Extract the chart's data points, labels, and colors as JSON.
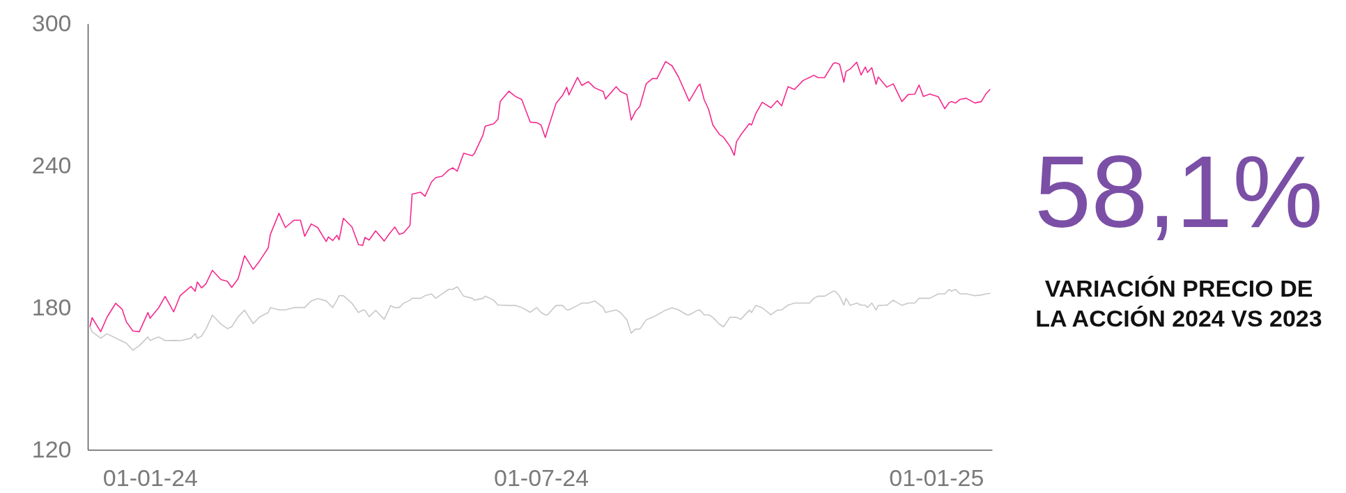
{
  "chart_data": {
    "type": "line",
    "x": [
      "2023-12-04",
      "2023-12-05",
      "2023-12-09",
      "2023-12-12",
      "2023-12-16",
      "2023-12-19",
      "2023-12-21",
      "2023-12-24",
      "2023-12-27",
      "2023-12-31",
      "2024-01-01",
      "2024-01-05",
      "2024-01-08",
      "2024-01-12",
      "2024-01-15",
      "2024-01-20",
      "2024-01-22",
      "2024-01-23",
      "2024-01-25",
      "2024-01-27",
      "2024-01-30",
      "2024-02-03",
      "2024-02-06",
      "2024-02-08",
      "2024-02-11",
      "2024-02-14",
      "2024-02-18",
      "2024-02-21",
      "2024-02-25",
      "2024-02-26",
      "2024-03-01",
      "2024-03-04",
      "2024-03-08",
      "2024-03-11",
      "2024-03-13",
      "2024-03-16",
      "2024-03-19",
      "2024-03-23",
      "2024-03-24",
      "2024-03-26",
      "2024-03-28",
      "2024-03-29",
      "2024-03-31",
      "2024-04-04",
      "2024-04-07",
      "2024-04-09",
      "2024-04-10",
      "2024-04-12",
      "2024-04-15",
      "2024-04-19",
      "2024-04-22",
      "2024-04-24",
      "2024-04-26",
      "2024-04-28",
      "2024-05-01",
      "2024-05-02",
      "2024-05-06",
      "2024-05-08",
      "2024-05-11",
      "2024-05-13",
      "2024-05-16",
      "2024-05-19",
      "2024-05-21",
      "2024-05-23",
      "2024-05-26",
      "2024-05-30",
      "2024-05-31",
      "2024-06-04",
      "2024-06-05",
      "2024-06-09",
      "2024-06-11",
      "2024-06-12",
      "2024-06-16",
      "2024-06-19",
      "2024-06-22",
      "2024-06-26",
      "2024-06-29",
      "2024-07-01",
      "2024-07-03",
      "2024-07-04",
      "2024-07-08",
      "2024-07-11",
      "2024-07-13",
      "2024-07-14",
      "2024-07-18",
      "2024-07-20",
      "2024-07-23",
      "2024-07-26",
      "2024-07-30",
      "2024-07-31",
      "2024-08-05",
      "2024-08-07",
      "2024-08-10",
      "2024-08-12",
      "2024-08-14",
      "2024-08-16",
      "2024-08-19",
      "2024-08-22",
      "2024-08-24",
      "2024-08-28",
      "2024-08-31",
      "2024-09-03",
      "2024-09-07",
      "2024-09-08",
      "2024-09-12",
      "2024-09-13",
      "2024-09-15",
      "2024-09-17",
      "2024-09-19",
      "2024-09-22",
      "2024-09-24",
      "2024-09-27",
      "2024-09-29",
      "2024-09-30",
      "2024-10-02",
      "2024-10-06",
      "2024-10-07",
      "2024-10-09",
      "2024-10-12",
      "2024-10-16",
      "2024-10-19",
      "2024-10-21",
      "2024-10-24",
      "2024-10-27",
      "2024-10-31",
      "2024-11-03",
      "2024-11-05",
      "2024-11-07",
      "2024-11-10",
      "2024-11-12",
      "2024-11-14",
      "2024-11-15",
      "2024-11-17",
      "2024-11-19",
      "2024-11-20",
      "2024-11-22",
      "2024-11-25",
      "2024-11-27",
      "2024-11-29",
      "2024-11-30",
      "2024-12-02",
      "2024-12-04",
      "2024-12-05",
      "2024-12-09",
      "2024-12-12",
      "2024-12-16",
      "2024-12-19",
      "2024-12-22",
      "2024-12-24",
      "2024-12-26",
      "2024-12-29",
      "2025-01-02",
      "2025-01-05",
      "2025-01-07",
      "2025-01-08",
      "2025-01-10",
      "2025-01-12",
      "2025-01-15",
      "2025-01-19",
      "2025-01-22",
      "2025-01-24",
      "2025-01-26"
    ],
    "series": [
      {
        "color": "#f5288d",
        "values": [
          172.0,
          175.8,
          169.9,
          176.1,
          181.9,
          179.4,
          174.0,
          170.2,
          169.9,
          178.0,
          175.6,
          180.0,
          184.8,
          178.3,
          185.1,
          189.0,
          187.0,
          190.9,
          188.4,
          190.1,
          195.8,
          191.9,
          191.2,
          188.6,
          192.3,
          202.0,
          196.2,
          199.8,
          205.3,
          211.0,
          219.9,
          213.9,
          217.0,
          217.0,
          210.2,
          215.4,
          213.9,
          208.0,
          209.9,
          208.4,
          210.6,
          208.7,
          217.8,
          214.1,
          206.7,
          206.3,
          209.7,
          208.6,
          212.5,
          208.2,
          212.0,
          214.1,
          211.0,
          211.6,
          214.8,
          228.0,
          228.8,
          227.1,
          233.1,
          235.0,
          235.6,
          238.2,
          239.1,
          237.7,
          245.3,
          244.2,
          245.2,
          253.0,
          256.7,
          257.7,
          259.7,
          267.1,
          271.5,
          269.3,
          268.0,
          258.4,
          258.2,
          257.2,
          251.9,
          255.0,
          266.3,
          269.7,
          273.1,
          269.9,
          277.3,
          273.9,
          275.5,
          272.9,
          271.3,
          268.2,
          273.4,
          271.3,
          270.1,
          259.3,
          263.0,
          265.0,
          274.7,
          276.9,
          276.8,
          284.0,
          282.2,
          277.5,
          269.3,
          267.3,
          273.5,
          274.5,
          267.8,
          263.9,
          257.2,
          253.3,
          252.0,
          248.2,
          244.4,
          250.1,
          253.0,
          257.8,
          257.2,
          262.0,
          266.8,
          264.5,
          267.5,
          265.3,
          273.4,
          272.2,
          276.0,
          277.3,
          278.2,
          277.2,
          277.2,
          280.2,
          283.1,
          283.5,
          282.9,
          275.3,
          279.8,
          280.9,
          283.7,
          278.3,
          281.7,
          279.4,
          281.4,
          274.4,
          277.5,
          273.2,
          274.6,
          267.1,
          270.1,
          270.2,
          274.1,
          269.3,
          270.3,
          269.1,
          264.1,
          266.7,
          267.1,
          266.5,
          268.0,
          268.5,
          266.5,
          267.1,
          270.2,
          272.2
        ]
      },
      {
        "color": "#c8c8c8",
        "values": [
          172.0,
          169.9,
          167.2,
          169.0,
          167.2,
          165.9,
          165.0,
          162.1,
          164.0,
          167.7,
          166.2,
          167.7,
          166.1,
          166.2,
          166.1,
          167.1,
          169.1,
          167.1,
          168.1,
          171.0,
          176.9,
          173.1,
          171.2,
          172.0,
          176.2,
          179.0,
          173.3,
          176.1,
          178.0,
          180.1,
          179.1,
          179.1,
          180.1,
          180.1,
          180.1,
          182.9,
          183.9,
          182.9,
          182.0,
          180.1,
          183.2,
          185.1,
          185.1,
          181.9,
          178.0,
          179.0,
          179.0,
          176.2,
          178.9,
          175.1,
          180.9,
          180.1,
          180.1,
          181.9,
          183.2,
          184.0,
          184.0,
          185.1,
          185.9,
          184.0,
          185.9,
          187.8,
          187.8,
          188.9,
          184.9,
          184.0,
          183.2,
          184.0,
          184.9,
          183.2,
          181.1,
          181.1,
          181.0,
          181.0,
          180.1,
          178.1,
          180.1,
          178.0,
          177.0,
          177.0,
          181.0,
          181.0,
          179.1,
          179.1,
          181.0,
          182.0,
          182.0,
          182.9,
          180.1,
          178.0,
          179.1,
          178.0,
          174.9,
          169.3,
          171.0,
          171.0,
          174.9,
          176.0,
          177.0,
          179.0,
          180.0,
          179.1,
          177.0,
          177.0,
          179.0,
          179.0,
          177.0,
          177.0,
          176.0,
          173.1,
          172.0,
          176.0,
          176.0,
          176.0,
          175.1,
          179.0,
          178.0,
          181.0,
          180.0,
          177.0,
          179.0,
          179.1,
          181.1,
          182.0,
          182.0,
          182.0,
          184.0,
          184.9,
          184.9,
          185.9,
          187.0,
          187.0,
          184.9,
          181.1,
          184.0,
          181.0,
          182.0,
          181.1,
          181.1,
          180.1,
          182.0,
          179.1,
          181.0,
          181.1,
          183.2,
          181.0,
          182.0,
          182.0,
          184.0,
          184.0,
          184.0,
          185.9,
          185.9,
          187.8,
          187.0,
          187.8,
          185.9,
          185.9,
          185.1,
          185.4,
          185.8,
          186.1
        ]
      }
    ],
    "xlim": [
      "2023-12-03",
      "2025-01-27"
    ],
    "xticks": [
      {
        "value": "2024-01-01",
        "label": "01-01-24"
      },
      {
        "value": "2024-07-01",
        "label": "01-07-24"
      },
      {
        "value": "2025-01-01",
        "label": "01-01-25"
      }
    ],
    "ylim": [
      120,
      300
    ],
    "yticks": [
      120,
      180,
      240,
      300
    ],
    "annotations": [
      "58,1%",
      "VARIACIÓN PRECIO DE LA ACCIÓN 2024 VS 2023"
    ]
  }
}
